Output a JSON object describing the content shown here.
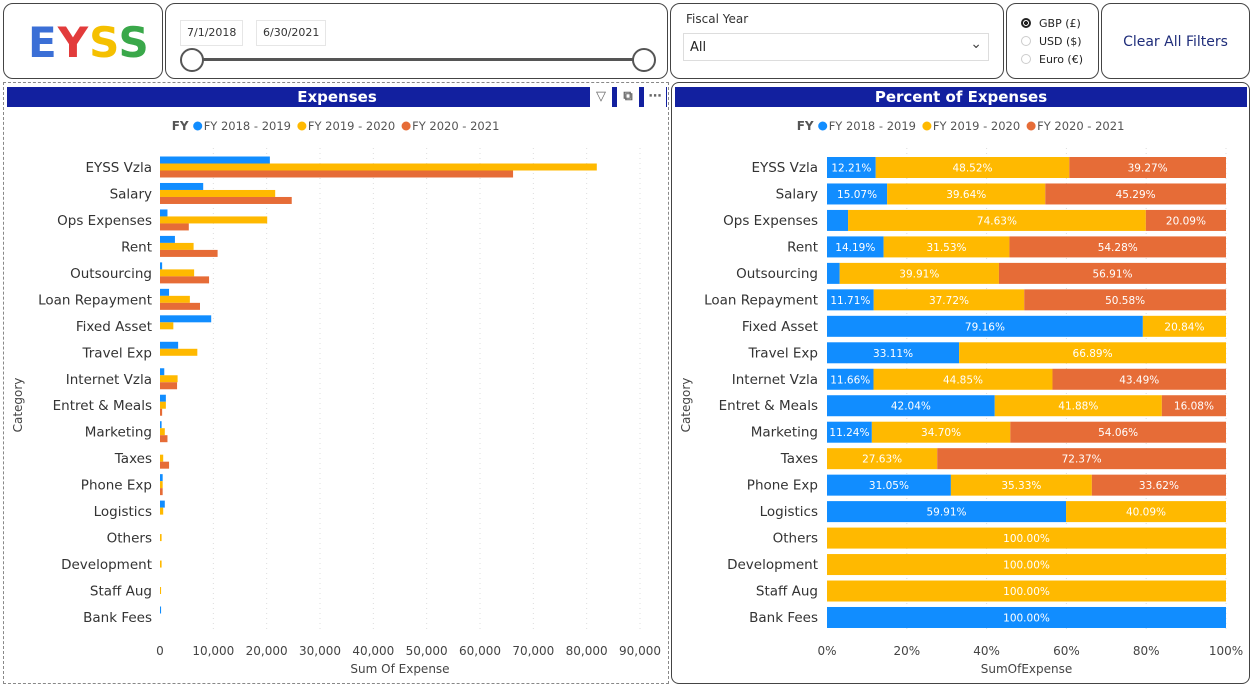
{
  "logo": {
    "text": "EYSS",
    "colors": [
      "#3b6fd6",
      "#e23b3b",
      "#f5c000",
      "#3aa84a"
    ]
  },
  "date_slicer": {
    "start": "7/1/2018",
    "end": "6/30/2021"
  },
  "fiscal_year": {
    "label": "Fiscal Year",
    "value": "All"
  },
  "currency": {
    "options": [
      {
        "label": "GBP (£)",
        "selected": true
      },
      {
        "label": "USD ($)",
        "selected": false
      },
      {
        "label": "Euro (€)",
        "selected": false
      }
    ]
  },
  "clear_filters": "Clear All Filters",
  "colors": {
    "fy1819": "#118DFF",
    "fy1920": "#FFB900",
    "fy2021": "#E66C37",
    "title_bar": "#12209F"
  },
  "chart_data": [
    {
      "type": "bar",
      "title": "Expenses",
      "legend_title": "FY",
      "legend_position": "top-center",
      "xlabel": "Sum Of Expense",
      "ylabel": "Category",
      "xlim": [
        0,
        90000
      ],
      "xticks": [
        "0",
        "10,000",
        "20,000",
        "30,000",
        "40,000",
        "50,000",
        "60,000",
        "70,000",
        "80,000",
        "90,000"
      ],
      "grid": true,
      "categories": [
        "EYSS Vzla",
        "Salary",
        "Ops Expenses",
        "Rent",
        "Outsourcing",
        "Loan Repayment",
        "Fixed Asset",
        "Travel Exp",
        "Internet Vzla",
        "Entret & Meals",
        "Marketing",
        "Taxes",
        "Phone Exp",
        "Logistics",
        "Others",
        "Development",
        "Staff Aug",
        "Bank Fees"
      ],
      "series": [
        {
          "name": "FY 2018 - 2019",
          "values": [
            20600,
            8100,
            1400,
            2800,
            400,
            1700,
            9600,
            3400,
            800,
            1100,
            300,
            0,
            500,
            900,
            0,
            0,
            0,
            200
          ]
        },
        {
          "name": "FY 2019 - 2020",
          "values": [
            81900,
            21600,
            20100,
            6300,
            6400,
            5600,
            2500,
            7000,
            3300,
            1100,
            900,
            600,
            500,
            600,
            300,
            300,
            200,
            0
          ]
        },
        {
          "name": "FY 2020 - 2021",
          "values": [
            66200,
            24700,
            5400,
            10800,
            9200,
            7500,
            0,
            0,
            3200,
            400,
            1400,
            1700,
            500,
            0,
            0,
            0,
            0,
            0
          ]
        }
      ]
    },
    {
      "type": "bar",
      "stacked": "percent",
      "title": "Percent of Expenses",
      "legend_title": "FY",
      "legend_position": "top-center",
      "xlabel": "SumOfExpense",
      "ylabel": "Category",
      "xlim": [
        0,
        100
      ],
      "xticks": [
        "0%",
        "20%",
        "40%",
        "60%",
        "80%",
        "100%"
      ],
      "categories": [
        "EYSS Vzla",
        "Salary",
        "Ops Expenses",
        "Rent",
        "Outsourcing",
        "Loan Repayment",
        "Fixed Asset",
        "Travel Exp",
        "Internet Vzla",
        "Entret & Meals",
        "Marketing",
        "Taxes",
        "Phone Exp",
        "Logistics",
        "Others",
        "Development",
        "Staff Aug",
        "Bank Fees"
      ],
      "series": [
        {
          "name": "FY 2018 - 2019",
          "values": [
            12.21,
            15.07,
            5.28,
            14.19,
            3.18,
            11.71,
            79.16,
            33.11,
            11.66,
            42.04,
            11.24,
            0,
            31.05,
            59.91,
            0,
            0,
            0,
            100
          ]
        },
        {
          "name": "FY 2019 - 2020",
          "values": [
            48.52,
            39.64,
            74.63,
            31.53,
            39.91,
            37.72,
            20.84,
            66.89,
            44.85,
            41.88,
            34.7,
            27.63,
            35.33,
            40.09,
            100,
            100,
            100,
            0
          ]
        },
        {
          "name": "FY 2020 - 2021",
          "values": [
            39.27,
            45.29,
            20.09,
            54.28,
            56.91,
            50.58,
            0,
            0,
            43.49,
            16.08,
            54.06,
            72.37,
            33.62,
            0,
            0,
            0,
            0,
            0
          ]
        }
      ],
      "hidden_labels": [
        [
          2,
          0
        ],
        [
          4,
          0
        ]
      ]
    }
  ]
}
